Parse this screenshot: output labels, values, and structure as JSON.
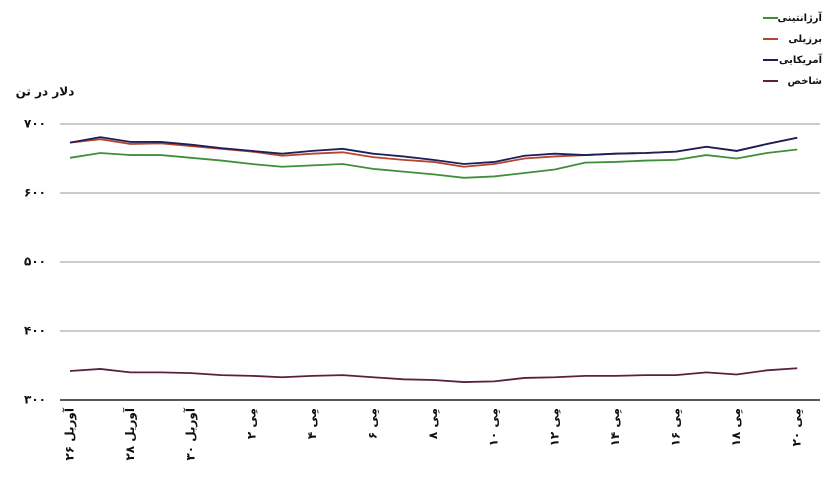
{
  "chart_data": {
    "type": "line",
    "y_axis_label": "دلار در تن",
    "categories": [
      "۲۶ آوریل",
      null,
      "۲۸ آوریل",
      null,
      "۳۰ آوریل",
      null,
      "۲ مِی",
      null,
      "۴ مِی",
      null,
      "۶ مِی",
      null,
      "۸ مِی",
      null,
      "۱۰ مِی",
      null,
      "۱۲ مِی",
      null,
      "۱۴ مِی",
      null,
      "۱۶ مِی",
      null,
      "۱۸ مِی",
      null,
      "۲۰ مِی"
    ],
    "series": [
      {
        "name": "آرژانتینی",
        "color": "#3f8f3a",
        "values": [
          651,
          658,
          655,
          655,
          651,
          647,
          642,
          638,
          640,
          642,
          635,
          631,
          627,
          622,
          624,
          629,
          634,
          644,
          645,
          647,
          648,
          655,
          650,
          658,
          663
        ]
      },
      {
        "name": "برزیلی",
        "color": "#b5452e",
        "values": [
          673,
          678,
          671,
          672,
          668,
          664,
          660,
          654,
          657,
          659,
          652,
          648,
          645,
          638,
          642,
          650,
          653,
          655,
          657,
          658,
          660,
          667,
          661,
          671,
          680
        ]
      },
      {
        "name": "آمریکایی",
        "color": "#1c1f5a",
        "values": [
          673,
          681,
          674,
          674,
          670,
          665,
          661,
          657,
          661,
          664,
          657,
          653,
          648,
          642,
          645,
          654,
          657,
          655,
          657,
          658,
          660,
          667,
          661,
          671,
          680
        ]
      },
      {
        "name": "شاخص",
        "color": "#5a2040",
        "values": [
          342,
          345,
          340,
          340,
          339,
          336,
          335,
          333,
          335,
          336,
          333,
          330,
          329,
          326,
          327,
          332,
          333,
          335,
          335,
          336,
          336,
          340,
          337,
          343,
          346
        ]
      }
    ],
    "ylim": [
      300,
      700
    ],
    "yticks": [
      {
        "value": 300,
        "label": "۳۰۰"
      },
      {
        "value": 400,
        "label": "۴۰۰"
      },
      {
        "value": 500,
        "label": "۵۰۰"
      },
      {
        "value": 600,
        "label": "۶۰۰"
      },
      {
        "value": 700,
        "label": "۷۰۰"
      }
    ],
    "grid": true
  }
}
